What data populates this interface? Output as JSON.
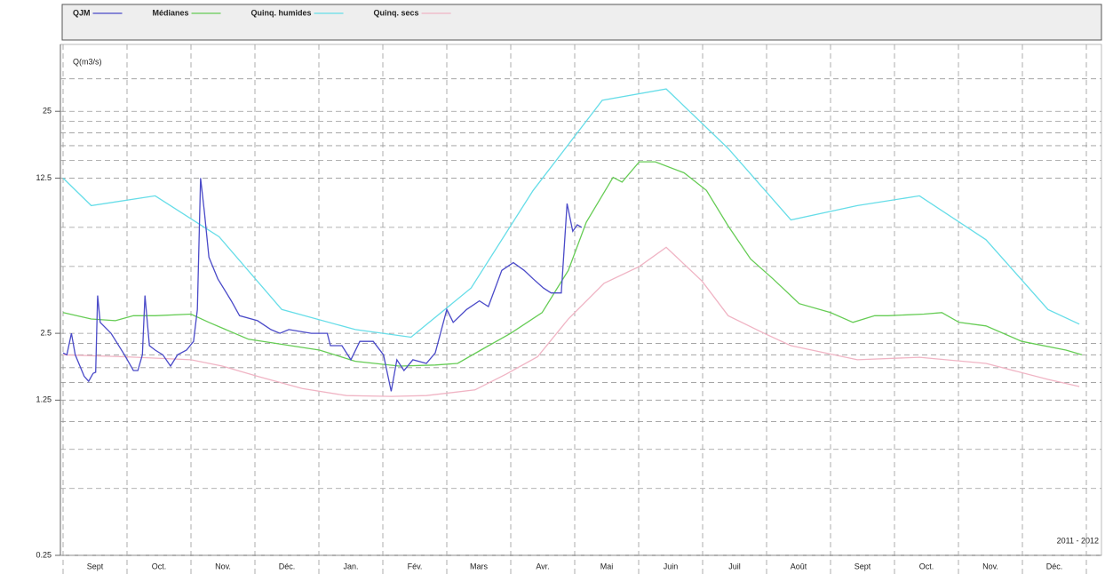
{
  "chart_data": {
    "type": "line",
    "y_label": "Q(m3/s)",
    "annotation": "2011 - 2012",
    "log_y": true,
    "grid": true,
    "categories": [
      "Sept",
      "Oct.",
      "Nov.",
      "Déc.",
      "Jan.",
      "Fév.",
      "Mars",
      "Avr.",
      "Mai",
      "Juin",
      "Juil",
      "Août",
      "Sept",
      "Oct.",
      "Nov.",
      "Déc."
    ],
    "xlim": [
      0,
      16.2
    ],
    "ylim": [
      0.25,
      50
    ],
    "yticks": [
      0.25,
      1.25,
      2.5,
      12.5,
      25
    ],
    "yminorticks": [
      0.5,
      0.75,
      1,
      1.5,
      1.75,
      2,
      2.25,
      5,
      7.5,
      15,
      17.5,
      20,
      22.5,
      35
    ],
    "series": [
      {
        "name": "QJM",
        "color": "#4a4ac8",
        "x": [
          0,
          0.06,
          0.13,
          0.19,
          0.33,
          0.4,
          0.47,
          0.51,
          0.54,
          0.58,
          0.75,
          0.96,
          1.1,
          1.17,
          1.24,
          1.28,
          1.35,
          1.44,
          1.56,
          1.68,
          1.79,
          1.93,
          2.04,
          2.1,
          2.15,
          2.21,
          2.28,
          2.42,
          2.63,
          2.76,
          3.04,
          3.25,
          3.39,
          3.53,
          3.88,
          4.13,
          4.18,
          4.36,
          4.5,
          4.64,
          4.85,
          5.01,
          5.13,
          5.22,
          5.33,
          5.47,
          5.68,
          5.82,
          6.0,
          6.1,
          6.31,
          6.51,
          6.65,
          6.86,
          7.04,
          7.21,
          7.35,
          7.51,
          7.63,
          7.79,
          7.88,
          7.97,
          8.04,
          8.11
        ],
        "values": [
          2.04,
          2.0,
          2.5,
          2.0,
          1.6,
          1.52,
          1.65,
          1.67,
          3.7,
          2.8,
          2.5,
          2.0,
          1.7,
          1.7,
          2.0,
          3.7,
          2.2,
          2.1,
          2.0,
          1.78,
          2.0,
          2.1,
          2.3,
          3.2,
          12.5,
          8.8,
          5.5,
          4.4,
          3.5,
          3.0,
          2.85,
          2.6,
          2.5,
          2.6,
          2.5,
          2.5,
          2.2,
          2.2,
          1.9,
          2.3,
          2.3,
          2.0,
          1.37,
          1.9,
          1.7,
          1.9,
          1.83,
          2.04,
          3.2,
          2.8,
          3.2,
          3.5,
          3.3,
          4.8,
          5.2,
          4.8,
          4.4,
          4.0,
          3.8,
          3.8,
          9.6,
          7.2,
          7.7,
          7.5
        ]
      },
      {
        "name": "Médianes",
        "color": "#66cc55",
        "x": [
          0,
          0.44,
          0.82,
          1.1,
          1.44,
          2.0,
          2.28,
          2.9,
          4.01,
          4.57,
          5.26,
          5.82,
          6.17,
          6.58,
          7.0,
          7.49,
          7.9,
          8.18,
          8.6,
          8.74,
          9.01,
          9.26,
          9.71,
          10.06,
          10.4,
          10.75,
          11.1,
          11.51,
          12.0,
          12.35,
          12.69,
          12.9,
          13.46,
          13.74,
          14.01,
          14.43,
          14.99,
          15.68,
          15.93
        ],
        "values": [
          3.1,
          2.9,
          2.85,
          3.0,
          3.0,
          3.05,
          2.8,
          2.35,
          2.1,
          1.87,
          1.78,
          1.8,
          1.83,
          2.14,
          2.5,
          3.1,
          4.8,
          7.9,
          12.6,
          12,
          14.8,
          14.8,
          13.2,
          11,
          7.6,
          5.4,
          4.4,
          3.4,
          3.1,
          2.8,
          3.0,
          3.0,
          3.05,
          3.1,
          2.8,
          2.7,
          2.3,
          2.1,
          2.0
        ]
      },
      {
        "name": "Quinq. humides",
        "color": "#66dde8",
        "x": [
          0,
          0.44,
          1.44,
          2.44,
          3.42,
          4.57,
          5.44,
          6.38,
          7.35,
          8.43,
          9.43,
          10.4,
          11.38,
          12.42,
          13.39,
          14.43,
          15.4,
          15.89
        ],
        "values": [
          12.5,
          9.4,
          10.4,
          6.8,
          3.2,
          2.6,
          2.4,
          4.0,
          11,
          28,
          31.5,
          17,
          8.1,
          9.4,
          10.4,
          6.6,
          3.2,
          2.75
        ]
      },
      {
        "name": "Quinq. secs",
        "color": "#f0b4c4",
        "x": [
          0,
          0.96,
          2.0,
          2.49,
          3.04,
          3.74,
          4.43,
          5.13,
          5.68,
          6.44,
          6.93,
          7.42,
          7.9,
          8.46,
          9.01,
          9.43,
          9.99,
          10.4,
          10.96,
          11.38,
          12.42,
          13.39,
          14.43,
          15.4,
          15.89
        ],
        "values": [
          2.0,
          1.96,
          1.9,
          1.78,
          1.6,
          1.41,
          1.31,
          1.3,
          1.31,
          1.39,
          1.64,
          1.96,
          2.9,
          4.2,
          5.0,
          6.1,
          4.3,
          3.0,
          2.5,
          2.2,
          1.9,
          1.95,
          1.83,
          1.55,
          1.44
        ]
      }
    ]
  }
}
